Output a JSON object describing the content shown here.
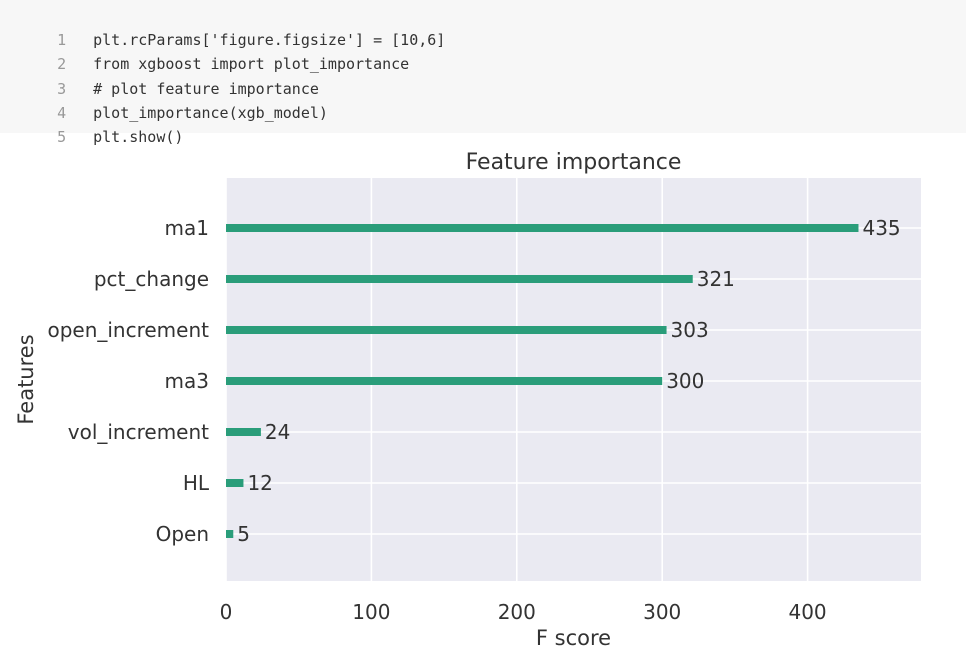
{
  "code_cell": {
    "lines": [
      {
        "number": "1",
        "text": "plt.rcParams['figure.figsize'] = [10,6]"
      },
      {
        "number": "2",
        "text": "from xgboost import plot_importance"
      },
      {
        "number": "3",
        "text": "# plot feature importance"
      },
      {
        "number": "4",
        "text": "plot_importance(xgb_model)"
      },
      {
        "number": "5",
        "text": "plt.show()"
      }
    ]
  },
  "chart_data": {
    "type": "bar",
    "orientation": "horizontal",
    "title": "Feature importance",
    "xlabel": "F score",
    "ylabel": "Features",
    "categories": [
      "ma1",
      "pct_change",
      "open_increment",
      "ma3",
      "vol_increment",
      "HL",
      "Open"
    ],
    "values": [
      435,
      321,
      303,
      300,
      24,
      12,
      5
    ],
    "xlim": [
      0,
      478
    ],
    "xticks": [
      0,
      100,
      200,
      300,
      400
    ],
    "grid": true,
    "bar_color": "#2a9d7a",
    "plot_background": "#eaeaf2",
    "text_color": "#333333"
  }
}
